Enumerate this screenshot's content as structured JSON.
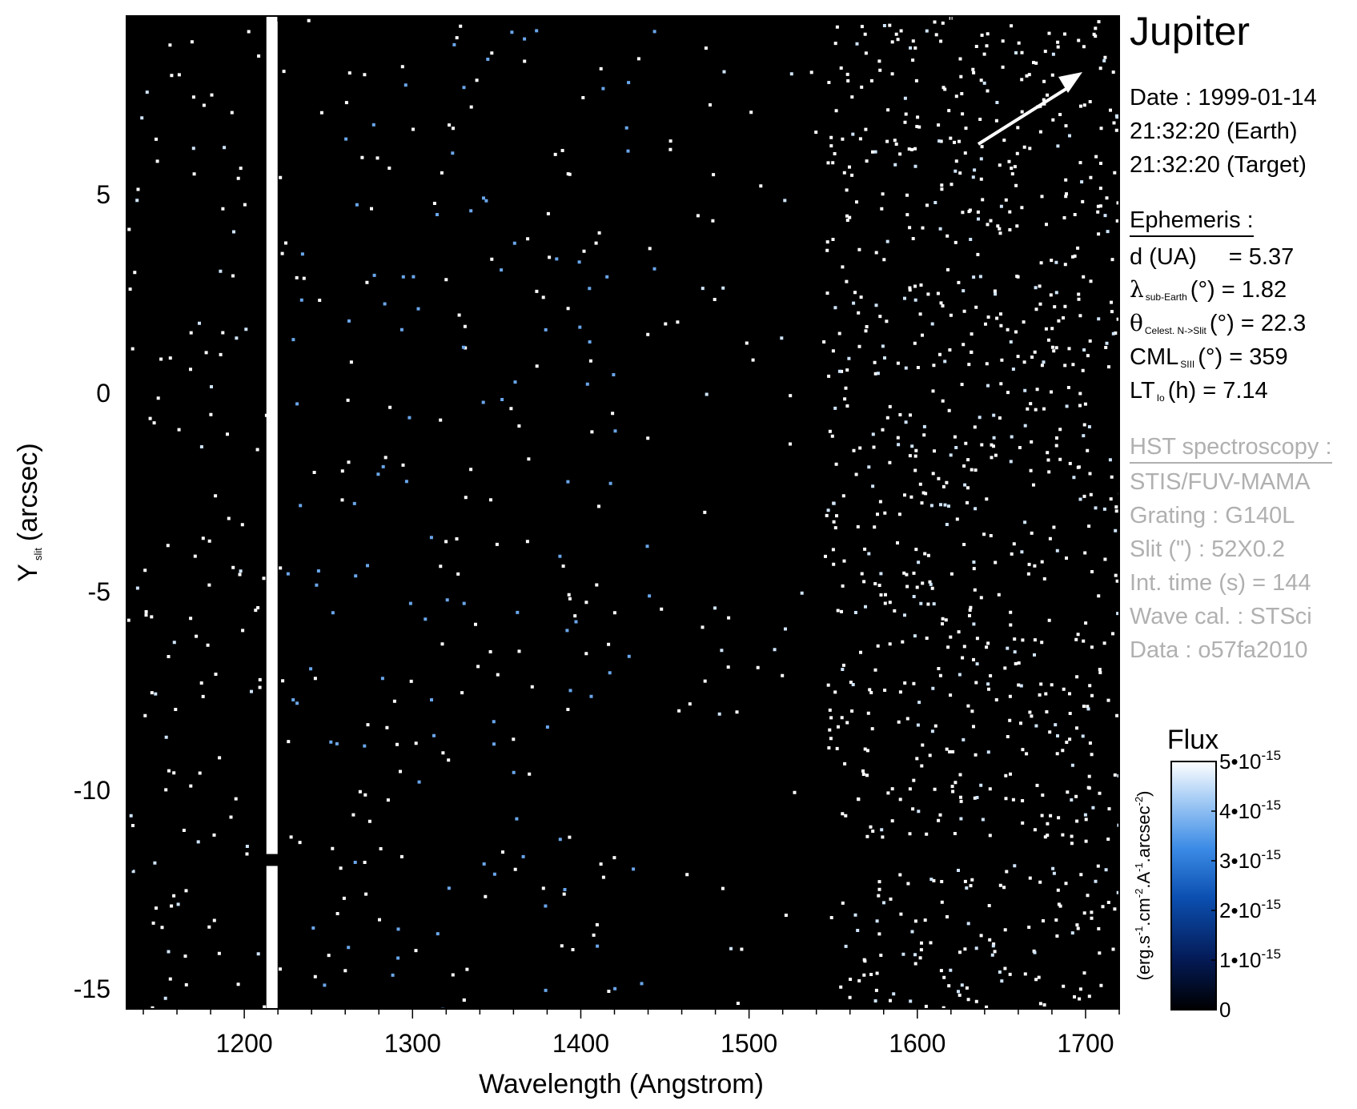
{
  "chart_data": {
    "type": "heatmap",
    "title": "",
    "xlabel": "Wavelength (Angstrom)",
    "ylabel_main": "Y",
    "ylabel_sub": "slit",
    "ylabel_unit": "(arcsec)",
    "xlim": [
      1130,
      1720
    ],
    "ylim": [
      -15.5,
      9.5
    ],
    "xticks": [
      1200,
      1300,
      1400,
      1500,
      1600,
      1700
    ],
    "yticks": [
      5,
      0,
      -5,
      -10,
      -15
    ],
    "features": {
      "lyman_alpha_line_x": 1216,
      "lyman_alpha_gap_y": [
        -11.6,
        -11.9
      ],
      "detector_gap_y": [
        -11.3,
        -11.8
      ],
      "bright_region_x": [
        1545,
        1720
      ]
    },
    "colorbar": {
      "title": "Flux",
      "label": "(erg.s-1.cm-2.A-1.arcsec-2)",
      "range": [
        0,
        5e-15
      ],
      "ticks": [
        {
          "value": 5e-15,
          "mant": "5•10",
          "exp": "-15"
        },
        {
          "value": 4e-15,
          "mant": "4•10",
          "exp": "-15"
        },
        {
          "value": 3e-15,
          "mant": "3•10",
          "exp": "-15"
        },
        {
          "value": 2e-15,
          "mant": "2•10",
          "exp": "-15"
        },
        {
          "value": 1e-15,
          "mant": "1•10",
          "exp": "-15"
        },
        {
          "value": 0,
          "mant": "0",
          "exp": ""
        }
      ],
      "colors": [
        "#000000",
        "#041a55",
        "#0b4fb0",
        "#3b8be6",
        "#a7cdf5",
        "#ffffff"
      ]
    }
  },
  "info": {
    "target": "Jupiter",
    "date_line": "Date : 1999-01-14",
    "time_earth": "21:32:20 (Earth)",
    "time_target": "21:32:20 (Target)",
    "ephemeris_title": "Ephemeris :",
    "ephem": {
      "d_label": "d (UA)",
      "d_value": "= 5.37",
      "lambda_sym": "λ",
      "lambda_sub": "sub-Earth",
      "lambda_rest": "(°)  = 1.82",
      "theta_sym": "θ",
      "theta_sub": "Celest. N->Slit",
      "theta_rest": "(°) = 22.3",
      "cml_main": "CML",
      "cml_sub": "SIII",
      "cml_rest": "(°) = 359",
      "lt_main": "LT",
      "lt_sub": "Io",
      "lt_rest": "(h) = 7.14"
    },
    "hst_title": "HST spectroscopy :",
    "instrument": "STIS/FUV-MAMA",
    "grating": "Grating : G140L",
    "slit": "Slit (\") : 52X0.2",
    "int_time": "Int. time (s) = 144",
    "wave_cal": "Wave cal. : STSci",
    "data_id": "Data : o57fa2010"
  }
}
